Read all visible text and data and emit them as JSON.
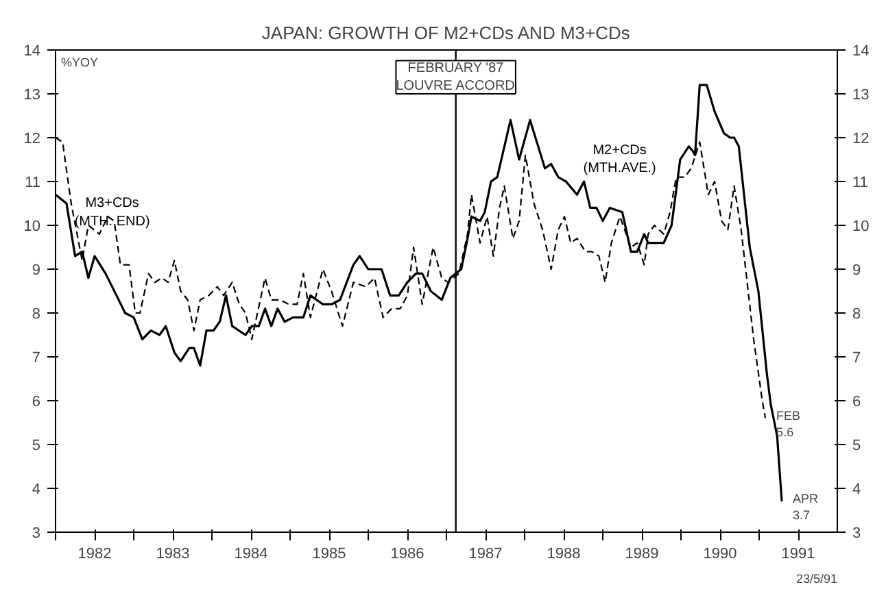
{
  "chart_data": {
    "type": "line",
    "title": "JAPAN: GROWTH OF M2+CDs AND M3+CDs",
    "ylabel": "%YOY",
    "xlim": [
      1982,
      1992
    ],
    "ylim": [
      3,
      14
    ],
    "xticks": [
      {
        "value": 1982,
        "label": null
      },
      {
        "value": 1982.5,
        "label": "1982"
      },
      {
        "value": 1983,
        "label": null
      },
      {
        "value": 1983.5,
        "label": "1983"
      },
      {
        "value": 1984,
        "label": null
      },
      {
        "value": 1984.5,
        "label": "1984"
      },
      {
        "value": 1985,
        "label": null
      },
      {
        "value": 1985.5,
        "label": "1985"
      },
      {
        "value": 1986,
        "label": null
      },
      {
        "value": 1986.5,
        "label": "1986"
      },
      {
        "value": 1987,
        "label": null
      },
      {
        "value": 1987.5,
        "label": "1987"
      },
      {
        "value": 1988,
        "label": null
      },
      {
        "value": 1988.5,
        "label": "1988"
      },
      {
        "value": 1989,
        "label": null
      },
      {
        "value": 1989.5,
        "label": "1989"
      },
      {
        "value": 1990,
        "label": null
      },
      {
        "value": 1990.5,
        "label": "1990"
      },
      {
        "value": 1991,
        "label": null
      },
      {
        "value": 1991.5,
        "label": "1991"
      }
    ],
    "yticks": [
      3,
      4,
      5,
      6,
      7,
      8,
      9,
      10,
      11,
      12,
      13,
      14
    ],
    "y2lim": [
      3,
      14
    ],
    "y2ticks": [
      3,
      4,
      5,
      6,
      7,
      8,
      9,
      10,
      11,
      12,
      13,
      14
    ],
    "grid": false,
    "marker": "none",
    "series": [
      {
        "name": "M2+CDs\n(MTH.AVE.)",
        "color": "#000000",
        "line_style": "solid",
        "x": [
          1982.0,
          1982.14,
          1982.25,
          1982.34,
          1982.42,
          1982.5,
          1982.64,
          1982.78,
          1982.89,
          1983.0,
          1983.11,
          1983.22,
          1983.33,
          1983.41,
          1983.52,
          1983.6,
          1983.71,
          1983.77,
          1983.85,
          1983.93,
          1984.02,
          1984.1,
          1984.18,
          1984.26,
          1984.43,
          1984.51,
          1984.6,
          1984.68,
          1984.76,
          1984.84,
          1984.93,
          1985.04,
          1985.17,
          1985.26,
          1985.42,
          1985.53,
          1985.64,
          1985.81,
          1985.89,
          1986.0,
          1986.17,
          1986.28,
          1986.39,
          1986.5,
          1986.61,
          1986.69,
          1986.8,
          1986.94,
          1987.05,
          1987.19,
          1987.27,
          1987.32,
          1987.43,
          1987.49,
          1987.57,
          1987.65,
          1987.82,
          1987.93,
          1988.07,
          1988.26,
          1988.34,
          1988.43,
          1988.53,
          1988.67,
          1988.76,
          1988.84,
          1988.92,
          1989.0,
          1989.09,
          1989.25,
          1989.36,
          1989.44,
          1989.53,
          1989.58,
          1989.78,
          1989.88,
          1989.99,
          1990.1,
          1990.15,
          1990.18,
          1990.24,
          1990.33,
          1990.43,
          1990.55,
          1990.63,
          1990.68,
          1990.74,
          1990.88,
          1990.99,
          1991.1,
          1991.15,
          1991.23,
          1991.29
        ],
        "values": [
          10.7,
          10.5,
          9.3,
          9.4,
          8.8,
          9.3,
          8.9,
          8.4,
          8.0,
          7.9,
          7.4,
          7.6,
          7.5,
          7.7,
          7.1,
          6.9,
          7.2,
          7.2,
          6.8,
          7.6,
          7.6,
          7.8,
          8.4,
          7.7,
          7.5,
          7.7,
          7.7,
          8.1,
          7.7,
          8.1,
          7.8,
          7.9,
          7.9,
          8.4,
          8.2,
          8.2,
          8.3,
          9.1,
          9.3,
          9.0,
          9.0,
          8.4,
          8.4,
          8.7,
          8.9,
          8.9,
          8.5,
          8.3,
          8.8,
          9.0,
          9.7,
          10.2,
          10.1,
          10.3,
          11.0,
          11.1,
          12.4,
          11.5,
          12.4,
          11.3,
          11.4,
          11.1,
          11.0,
          10.7,
          11.0,
          10.4,
          10.4,
          10.1,
          10.4,
          10.3,
          9.4,
          9.4,
          9.8,
          9.6,
          9.6,
          10.0,
          11.5,
          11.8,
          11.7,
          11.6,
          13.2,
          13.2,
          12.6,
          12.1,
          12.0,
          12.0,
          11.8,
          9.5,
          8.5,
          6.6,
          5.9,
          5.2,
          3.7
        ]
      },
      {
        "name": "M3+CDs\n(MTH. END)",
        "color": "#000000",
        "line_style": "dashed",
        "x": [
          1982.0,
          1982.09,
          1982.2,
          1982.34,
          1982.42,
          1982.56,
          1982.67,
          1982.75,
          1982.83,
          1982.94,
          1983.02,
          1983.08,
          1983.19,
          1983.27,
          1983.36,
          1983.44,
          1983.52,
          1983.6,
          1983.69,
          1983.77,
          1983.85,
          1983.96,
          1984.07,
          1984.15,
          1984.26,
          1984.35,
          1984.43,
          1984.51,
          1984.68,
          1984.76,
          1984.87,
          1984.98,
          1985.09,
          1985.17,
          1985.26,
          1985.42,
          1985.53,
          1985.67,
          1985.81,
          1985.97,
          1986.08,
          1986.19,
          1986.3,
          1986.41,
          1986.5,
          1986.58,
          1986.69,
          1986.83,
          1986.94,
          1987.02,
          1987.16,
          1987.27,
          1987.32,
          1987.43,
          1987.52,
          1987.6,
          1987.68,
          1987.74,
          1987.85,
          1987.93,
          1988.01,
          1988.12,
          1988.23,
          1988.34,
          1988.43,
          1988.51,
          1988.59,
          1988.67,
          1988.78,
          1988.86,
          1988.95,
          1989.03,
          1989.11,
          1989.22,
          1989.36,
          1989.44,
          1989.53,
          1989.58,
          1989.66,
          1989.78,
          1989.86,
          1989.94,
          1990.05,
          1990.13,
          1990.24,
          1990.35,
          1990.43,
          1990.52,
          1990.6,
          1990.68,
          1990.77,
          1990.93,
          1991.04,
          1991.08
        ],
        "values": [
          12.0,
          11.9,
          10.5,
          9.2,
          10.0,
          9.8,
          10.2,
          10.1,
          9.1,
          9.1,
          8.0,
          8.0,
          8.9,
          8.7,
          8.8,
          8.7,
          9.2,
          8.5,
          8.3,
          7.6,
          8.3,
          8.4,
          8.6,
          8.4,
          8.7,
          8.2,
          8.0,
          7.4,
          8.8,
          8.3,
          8.3,
          8.2,
          8.2,
          8.9,
          7.9,
          9.0,
          8.5,
          7.7,
          8.7,
          8.6,
          8.8,
          7.9,
          8.1,
          8.1,
          8.4,
          9.5,
          8.2,
          9.5,
          8.8,
          8.7,
          8.9,
          9.8,
          10.7,
          9.6,
          10.2,
          9.3,
          10.4,
          10.9,
          9.7,
          10.1,
          11.6,
          10.5,
          9.9,
          9.0,
          9.9,
          10.2,
          9.6,
          9.7,
          9.4,
          9.4,
          9.3,
          8.7,
          9.6,
          10.2,
          9.5,
          9.6,
          9.1,
          9.8,
          10.0,
          9.8,
          10.3,
          11.1,
          11.1,
          11.3,
          11.9,
          10.7,
          11.0,
          10.1,
          9.9,
          10.9,
          9.9,
          7.4,
          6.0,
          5.6
        ]
      }
    ],
    "ref_lines": [
      {
        "axis": "x",
        "value": 1987.12,
        "label": "FEBRUARY '87\nLOUVRE ACCORD"
      }
    ],
    "annotations": [
      {
        "text": "FEB\n5.6",
        "x": 1991.08,
        "y": 5.6
      },
      {
        "text": "APR\n3.7",
        "x": 1991.29,
        "y": 3.7
      },
      "23/5/91"
    ]
  }
}
